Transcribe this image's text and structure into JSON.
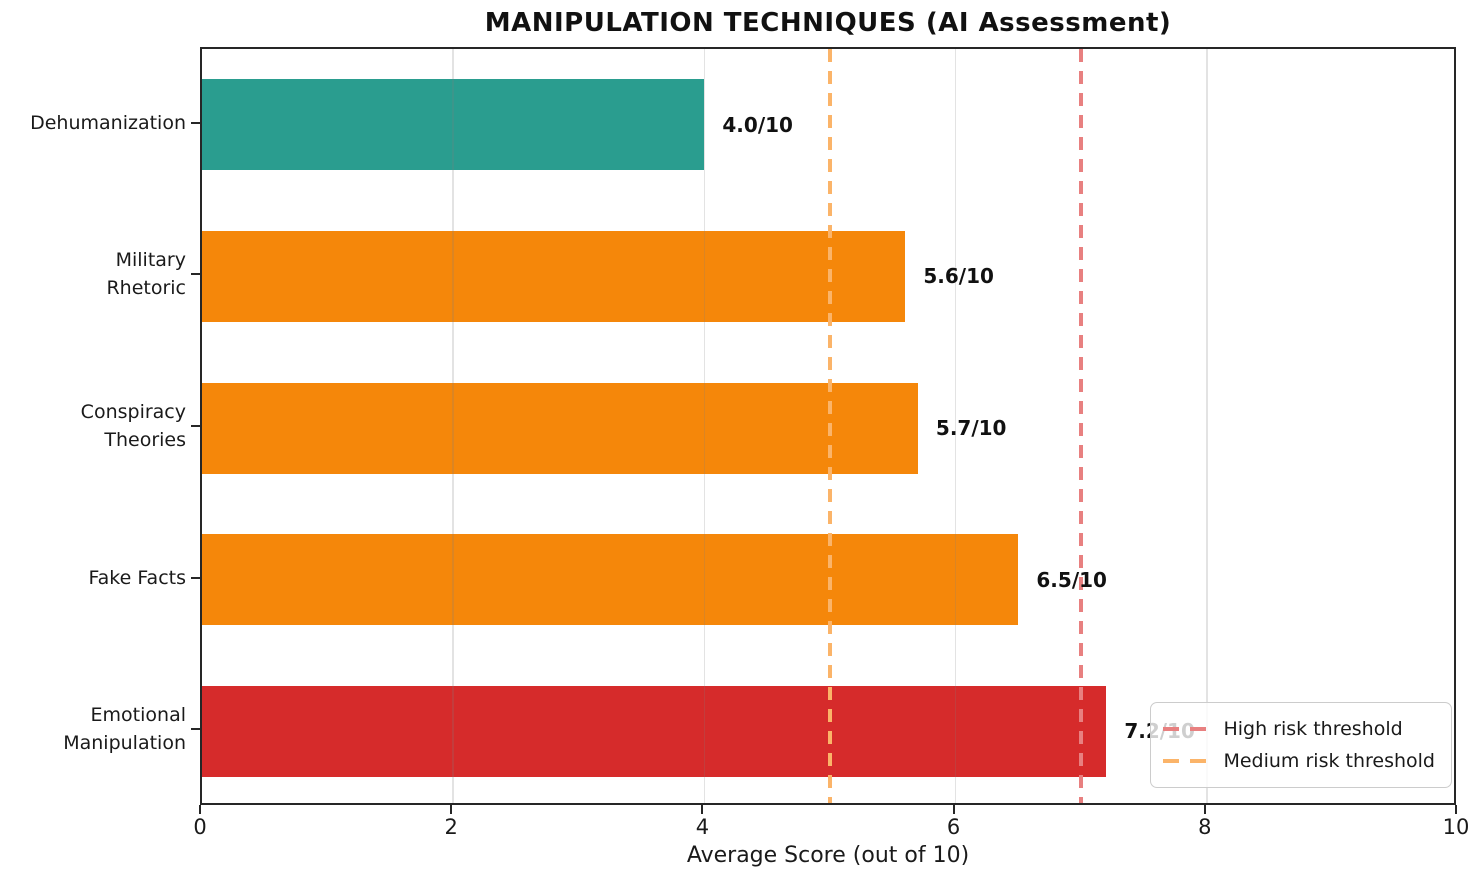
{
  "chart_data": {
    "type": "bar",
    "orientation": "horizontal",
    "title": "MANIPULATION TECHNIQUES (AI Assessment)",
    "xlabel": "Average Score (out of 10)",
    "categories": [
      "Dehumanization",
      "Military\nRhetoric",
      "Conspiracy\nTheories",
      "Fake Facts",
      "Emotional\nManipulation"
    ],
    "values": [
      4.0,
      5.6,
      5.7,
      6.5,
      7.2
    ],
    "value_labels": [
      "4.0/10",
      "5.6/10",
      "5.7/10",
      "6.5/10",
      "7.2/10"
    ],
    "bar_colors": [
      "#2a9d8f",
      "#f5870a",
      "#f5870a",
      "#f5870a",
      "#d62b2b"
    ],
    "xlim": [
      0,
      10
    ],
    "xticks": [
      0,
      2,
      4,
      6,
      8,
      10
    ],
    "xtick_labels": [
      "0",
      "2",
      "4",
      "6",
      "8",
      "10"
    ],
    "grid": true,
    "legend_position": "lower right",
    "thresholds": [
      {
        "value": 7,
        "label": "High risk threshold",
        "color": "#e88080"
      },
      {
        "value": 5,
        "label": "Medium risk threshold",
        "color": "#fbb469"
      }
    ]
  },
  "colors": {
    "spine": "#262626",
    "text": "#1a1a1a",
    "grid": "rgba(128,128,128,0.22)",
    "legend_border": "#cccccc",
    "legend_bg": "rgba(255,255,255,0.8)"
  }
}
